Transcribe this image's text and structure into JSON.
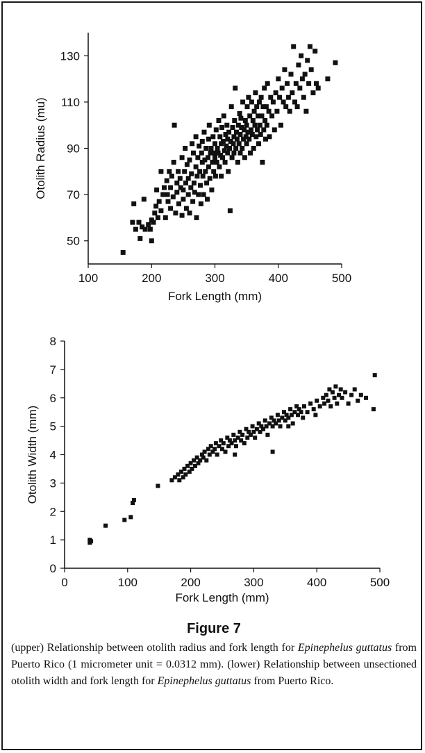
{
  "figure": {
    "label": "Figure 7",
    "caption": {
      "p1": "(upper) Relationship between otolith radius and fork length for ",
      "species1": "Epinephelus guttatus",
      "p2": " from Puerto Rico (1 micrometer unit = 0.0312 mm). (lower) Relationship between unsectioned otolith width and fork length for ",
      "species2": "Epinephelus guttatus",
      "p3": " from Puerto Rico."
    }
  },
  "colors": {
    "points": "#111111",
    "axes": "#111111",
    "frame": "#1a1a1a"
  },
  "chart_data": [
    {
      "type": "scatter",
      "title": "",
      "xlabel": "Fork Length (mm)",
      "ylabel": "Otolith Radius (mu)",
      "xlim": [
        100,
        500
      ],
      "ylim": [
        40,
        140
      ],
      "xticks": [
        "100",
        "200",
        "300",
        "400",
        "500"
      ],
      "yticks": [
        "50",
        "70",
        "90",
        "110",
        "130"
      ],
      "grid": false,
      "note": "dense point cloud (~600 fish); representative points listed",
      "points": [
        [
          155,
          45
        ],
        [
          170,
          58
        ],
        [
          172,
          66
        ],
        [
          175,
          55
        ],
        [
          180,
          58
        ],
        [
          182,
          51
        ],
        [
          185,
          56
        ],
        [
          188,
          68
        ],
        [
          190,
          55
        ],
        [
          195,
          57
        ],
        [
          198,
          55
        ],
        [
          200,
          59
        ],
        [
          200,
          50
        ],
        [
          203,
          58
        ],
        [
          205,
          62
        ],
        [
          207,
          65
        ],
        [
          208,
          72
        ],
        [
          210,
          60
        ],
        [
          212,
          67
        ],
        [
          215,
          80
        ],
        [
          215,
          63
        ],
        [
          218,
          70
        ],
        [
          220,
          73
        ],
        [
          222,
          60
        ],
        [
          224,
          76
        ],
        [
          225,
          70
        ],
        [
          226,
          67
        ],
        [
          228,
          80
        ],
        [
          230,
          64
        ],
        [
          230,
          73
        ],
        [
          232,
          78
        ],
        [
          234,
          69
        ],
        [
          235,
          84
        ],
        [
          236,
          100
        ],
        [
          238,
          62
        ],
        [
          240,
          75
        ],
        [
          240,
          71
        ],
        [
          242,
          80
        ],
        [
          243,
          66
        ],
        [
          245,
          77
        ],
        [
          246,
          73
        ],
        [
          248,
          61
        ],
        [
          248,
          86
        ],
        [
          250,
          72
        ],
        [
          250,
          68
        ],
        [
          252,
          80
        ],
        [
          253,
          90
        ],
        [
          254,
          75
        ],
        [
          255,
          64
        ],
        [
          256,
          83
        ],
        [
          258,
          70
        ],
        [
          258,
          77
        ],
        [
          260,
          62
        ],
        [
          260,
          85
        ],
        [
          262,
          73
        ],
        [
          263,
          79
        ],
        [
          264,
          92
        ],
        [
          265,
          67
        ],
        [
          266,
          88
        ],
        [
          267,
          75
        ],
        [
          268,
          71
        ],
        [
          270,
          82
        ],
        [
          270,
          95
        ],
        [
          271,
          60
        ],
        [
          272,
          78
        ],
        [
          273,
          86
        ],
        [
          274,
          70
        ],
        [
          275,
          91
        ],
        [
          276,
          80
        ],
        [
          277,
          74
        ],
        [
          278,
          66
        ],
        [
          279,
          88
        ],
        [
          280,
          84
        ],
        [
          280,
          93
        ],
        [
          281,
          78
        ],
        [
          282,
          70
        ],
        [
          283,
          97
        ],
        [
          284,
          85
        ],
        [
          285,
          80
        ],
        [
          286,
          90
        ],
        [
          287,
          75
        ],
        [
          288,
          68
        ],
        [
          289,
          86
        ],
        [
          290,
          94
        ],
        [
          290,
          82
        ],
        [
          291,
          100
        ],
        [
          292,
          77
        ],
        [
          293,
          88
        ],
        [
          294,
          90
        ],
        [
          295,
          72
        ],
        [
          296,
          84
        ],
        [
          297,
          95
        ],
        [
          298,
          80
        ],
        [
          299,
          88
        ],
        [
          300,
          92
        ],
        [
          300,
          86
        ],
        [
          301,
          78
        ],
        [
          302,
          98
        ],
        [
          303,
          84
        ],
        [
          304,
          90
        ],
        [
          305,
          88
        ],
        [
          306,
          102
        ],
        [
          307,
          82
        ],
        [
          308,
          95
        ],
        [
          309,
          87
        ],
        [
          310,
          92
        ],
        [
          310,
          78
        ],
        [
          311,
          99
        ],
        [
          312,
          86
        ],
        [
          313,
          93
        ],
        [
          314,
          104
        ],
        [
          315,
          89
        ],
        [
          316,
          84
        ],
        [
          317,
          96
        ],
        [
          318,
          91
        ],
        [
          319,
          100
        ],
        [
          320,
          88
        ],
        [
          320,
          94
        ],
        [
          321,
          80
        ],
        [
          322,
          97
        ],
        [
          323,
          90
        ],
        [
          324,
          63
        ],
        [
          325,
          93
        ],
        [
          326,
          108
        ],
        [
          327,
          86
        ],
        [
          328,
          99
        ],
        [
          329,
          92
        ],
        [
          330,
          95
        ],
        [
          330,
          88
        ],
        [
          331,
          102
        ],
        [
          332,
          116
        ],
        [
          333,
          90
        ],
        [
          334,
          97
        ],
        [
          335,
          94
        ],
        [
          336,
          84
        ],
        [
          337,
          100
        ],
        [
          338,
          92
        ],
        [
          339,
          105
        ],
        [
          340,
          96
        ],
        [
          340,
          88
        ],
        [
          341,
          103
        ],
        [
          342,
          99
        ],
        [
          343,
          90
        ],
        [
          344,
          110
        ],
        [
          345,
          94
        ],
        [
          346,
          98
        ],
        [
          347,
          86
        ],
        [
          348,
          102
        ],
        [
          349,
          95
        ],
        [
          350,
          100
        ],
        [
          350,
          92
        ],
        [
          351,
          108
        ],
        [
          352,
          97
        ],
        [
          353,
          112
        ],
        [
          354,
          94
        ],
        [
          355,
          104
        ],
        [
          356,
          88
        ],
        [
          357,
          98
        ],
        [
          358,
          110
        ],
        [
          359,
          96
        ],
        [
          360,
          102
        ],
        [
          361,
          90
        ],
        [
          362,
          106
        ],
        [
          363,
          100
        ],
        [
          364,
          114
        ],
        [
          365,
          95
        ],
        [
          366,
          108
        ],
        [
          367,
          98
        ],
        [
          368,
          104
        ],
        [
          369,
          92
        ],
        [
          370,
          110
        ],
        [
          371,
          100
        ],
        [
          372,
          96
        ],
        [
          373,
          112
        ],
        [
          374,
          104
        ],
        [
          375,
          84
        ],
        [
          376,
          108
        ],
        [
          377,
          98
        ],
        [
          378,
          116
        ],
        [
          379,
          102
        ],
        [
          380,
          94
        ],
        [
          381,
          108
        ],
        [
          382,
          100
        ],
        [
          383,
          118
        ],
        [
          385,
          106
        ],
        [
          386,
          95
        ],
        [
          388,
          112
        ],
        [
          390,
          104
        ],
        [
          392,
          110
        ],
        [
          394,
          98
        ],
        [
          396,
          114
        ],
        [
          398,
          106
        ],
        [
          400,
          120
        ],
        [
          402,
          112
        ],
        [
          404,
          100
        ],
        [
          406,
          116
        ],
        [
          408,
          110
        ],
        [
          410,
          124
        ],
        [
          412,
          108
        ],
        [
          414,
          118
        ],
        [
          416,
          112
        ],
        [
          418,
          106
        ],
        [
          420,
          122
        ],
        [
          422,
          114
        ],
        [
          424,
          134
        ],
        [
          426,
          110
        ],
        [
          428,
          118
        ],
        [
          430,
          108
        ],
        [
          432,
          126
        ],
        [
          434,
          116
        ],
        [
          436,
          130
        ],
        [
          438,
          120
        ],
        [
          440,
          112
        ],
        [
          442,
          122
        ],
        [
          444,
          106
        ],
        [
          446,
          128
        ],
        [
          448,
          118
        ],
        [
          450,
          134
        ],
        [
          452,
          124
        ],
        [
          455,
          114
        ],
        [
          458,
          132
        ],
        [
          460,
          118
        ],
        [
          463,
          116
        ],
        [
          478,
          120
        ],
        [
          490,
          127
        ]
      ]
    },
    {
      "type": "scatter",
      "title": "",
      "xlabel": "Fork Length (mm)",
      "ylabel": "Otolith Width (mm)",
      "xlim": [
        0,
        500
      ],
      "ylim": [
        0,
        8
      ],
      "xticks": [
        "0",
        "100",
        "200",
        "300",
        "400",
        "500"
      ],
      "yticks": [
        "0",
        "1",
        "2",
        "3",
        "4",
        "5",
        "6",
        "7",
        "8"
      ],
      "grid": false,
      "note": "dense point cloud; representative points listed",
      "points": [
        [
          40,
          0.9
        ],
        [
          40,
          1.0
        ],
        [
          42,
          0.95
        ],
        [
          65,
          1.5
        ],
        [
          95,
          1.7
        ],
        [
          105,
          1.8
        ],
        [
          108,
          2.3
        ],
        [
          110,
          2.4
        ],
        [
          148,
          2.9
        ],
        [
          170,
          3.1
        ],
        [
          175,
          3.2
        ],
        [
          180,
          3.3
        ],
        [
          182,
          3.1
        ],
        [
          185,
          3.4
        ],
        [
          188,
          3.2
        ],
        [
          190,
          3.5
        ],
        [
          192,
          3.3
        ],
        [
          195,
          3.6
        ],
        [
          198,
          3.4
        ],
        [
          200,
          3.7
        ],
        [
          202,
          3.5
        ],
        [
          205,
          3.8
        ],
        [
          207,
          3.6
        ],
        [
          210,
          3.9
        ],
        [
          212,
          3.7
        ],
        [
          215,
          3.8
        ],
        [
          218,
          4.0
        ],
        [
          220,
          3.9
        ],
        [
          222,
          4.1
        ],
        [
          225,
          3.8
        ],
        [
          228,
          4.2
        ],
        [
          230,
          4.0
        ],
        [
          232,
          4.3
        ],
        [
          235,
          4.1
        ],
        [
          238,
          4.2
        ],
        [
          240,
          4.4
        ],
        [
          242,
          4.0
        ],
        [
          245,
          4.3
        ],
        [
          248,
          4.5
        ],
        [
          250,
          4.2
        ],
        [
          252,
          4.4
        ],
        [
          255,
          4.1
        ],
        [
          258,
          4.6
        ],
        [
          260,
          4.3
        ],
        [
          262,
          4.5
        ],
        [
          265,
          4.4
        ],
        [
          268,
          4.7
        ],
        [
          270,
          4.5
        ],
        [
          272,
          4.3
        ],
        [
          275,
          4.6
        ],
        [
          278,
          4.8
        ],
        [
          280,
          4.5
        ],
        [
          282,
          4.7
        ],
        [
          285,
          4.4
        ],
        [
          288,
          4.9
        ],
        [
          290,
          4.6
        ],
        [
          292,
          4.8
        ],
        [
          295,
          4.7
        ],
        [
          298,
          5.0
        ],
        [
          300,
          4.8
        ],
        [
          302,
          4.6
        ],
        [
          305,
          4.9
        ],
        [
          308,
          5.1
        ],
        [
          310,
          4.8
        ],
        [
          312,
          5.0
        ],
        [
          315,
          4.9
        ],
        [
          318,
          5.2
        ],
        [
          320,
          5.0
        ],
        [
          322,
          4.7
        ],
        [
          325,
          5.1
        ],
        [
          328,
          5.3
        ],
        [
          330,
          5.0
        ],
        [
          332,
          5.2
        ],
        [
          335,
          5.1
        ],
        [
          338,
          5.4
        ],
        [
          340,
          5.2
        ],
        [
          342,
          5.0
        ],
        [
          345,
          5.3
        ],
        [
          348,
          5.5
        ],
        [
          350,
          5.2
        ],
        [
          352,
          5.4
        ],
        [
          355,
          5.3
        ],
        [
          358,
          5.6
        ],
        [
          360,
          5.4
        ],
        [
          362,
          5.1
        ],
        [
          365,
          5.5
        ],
        [
          368,
          5.7
        ],
        [
          370,
          5.4
        ],
        [
          372,
          5.6
        ],
        [
          375,
          5.5
        ],
        [
          378,
          5.3
        ],
        [
          380,
          5.7
        ],
        [
          385,
          5.5
        ],
        [
          390,
          5.8
        ],
        [
          395,
          5.6
        ],
        [
          398,
          5.4
        ],
        [
          400,
          5.9
        ],
        [
          405,
          5.7
        ],
        [
          410,
          6.0
        ],
        [
          412,
          5.8
        ],
        [
          415,
          6.1
        ],
        [
          418,
          5.9
        ],
        [
          420,
          6.3
        ],
        [
          422,
          5.7
        ],
        [
          425,
          6.2
        ],
        [
          428,
          6.0
        ],
        [
          430,
          6.4
        ],
        [
          432,
          5.8
        ],
        [
          435,
          6.1
        ],
        [
          438,
          6.3
        ],
        [
          440,
          6.0
        ],
        [
          445,
          6.2
        ],
        [
          450,
          5.8
        ],
        [
          455,
          6.1
        ],
        [
          460,
          6.3
        ],
        [
          465,
          5.9
        ],
        [
          470,
          6.1
        ],
        [
          478,
          6.0
        ],
        [
          490,
          5.6
        ],
        [
          492,
          6.8
        ],
        [
          330,
          4.1
        ],
        [
          355,
          5.0
        ],
        [
          270,
          4.0
        ]
      ]
    }
  ]
}
